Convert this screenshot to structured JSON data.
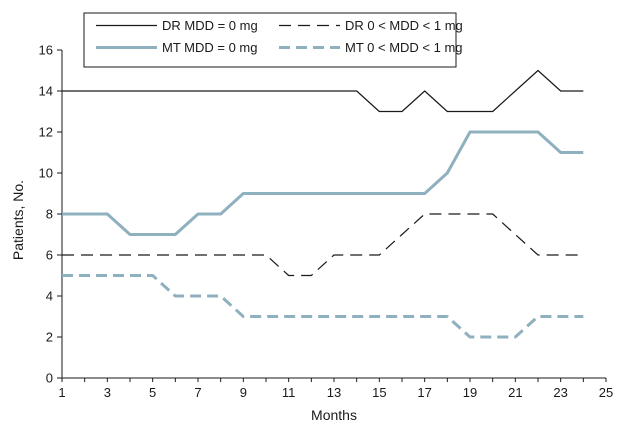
{
  "chart_data": {
    "type": "line",
    "xlabel": "Months",
    "ylabel": "Patients, No.",
    "xlim": [
      1,
      25
    ],
    "ylim": [
      0,
      16
    ],
    "xticks": [
      1,
      3,
      5,
      7,
      9,
      11,
      13,
      15,
      17,
      19,
      21,
      23,
      25
    ],
    "yticks": [
      0,
      2,
      4,
      6,
      8,
      10,
      12,
      14,
      16
    ],
    "grid": false,
    "legend_position": "top-center",
    "x": [
      1,
      2,
      3,
      4,
      5,
      6,
      7,
      8,
      9,
      10,
      11,
      12,
      13,
      14,
      15,
      16,
      17,
      18,
      19,
      20,
      21,
      22,
      23,
      24
    ],
    "series": [
      {
        "name": "DR MDD = 0 mg",
        "style": "solid",
        "color": "#1a1a1a",
        "values": [
          14,
          14,
          14,
          14,
          14,
          14,
          14,
          14,
          14,
          14,
          14,
          14,
          14,
          14,
          13,
          13,
          14,
          13,
          13,
          13,
          14,
          15,
          14,
          14
        ]
      },
      {
        "name": "DR 0 < MDD < 1 mg",
        "style": "dashed",
        "color": "#1a1a1a",
        "values": [
          6,
          6,
          6,
          6,
          6,
          6,
          6,
          6,
          6,
          6,
          5,
          5,
          6,
          6,
          6,
          7,
          8,
          8,
          8,
          8,
          7,
          6,
          6,
          6
        ]
      },
      {
        "name": "MT MDD = 0 mg",
        "style": "solid",
        "color": "#8fb0bf",
        "values": [
          8,
          8,
          8,
          7,
          7,
          7,
          8,
          8,
          9,
          9,
          9,
          9,
          9,
          9,
          9,
          9,
          9,
          10,
          12,
          12,
          12,
          12,
          11,
          11
        ]
      },
      {
        "name": "MT 0 < MDD < 1 mg",
        "style": "dashed",
        "color": "#8fb0bf",
        "values": [
          5,
          5,
          5,
          5,
          5,
          4,
          4,
          4,
          3,
          3,
          3,
          3,
          3,
          3,
          3,
          3,
          3,
          3,
          2,
          2,
          2,
          3,
          3,
          3
        ]
      }
    ]
  }
}
